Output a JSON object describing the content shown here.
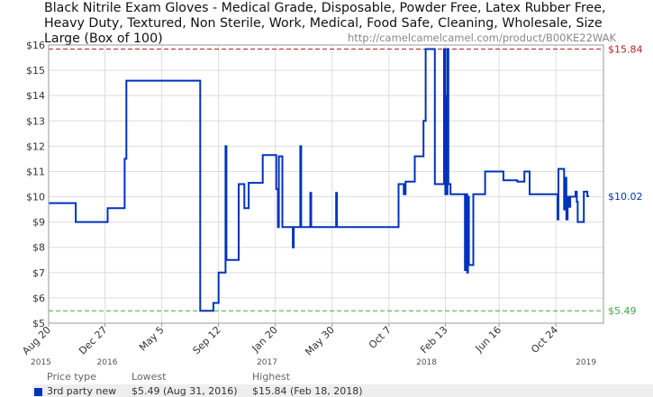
{
  "title": "Black Nitrile Exam Gloves - Medical Grade, Disposable, Powder Free, Latex Rubber Free, Heavy Duty, Textured, Non Sterile, Work, Medical, Food Safe, Cleaning, Wholesale, Size Large (Box of 100)",
  "source_url": "http://camelcamelcamel.com/product/B00KE22WAK",
  "colors": {
    "series": "#0033bb",
    "highest": "#b22222",
    "lowest": "#44aa44",
    "grid": "#dddddd",
    "axis_text": "#333333"
  },
  "chart_data": {
    "type": "line",
    "title": "Black Nitrile Exam Gloves - Medical Grade, Disposable, Powder Free, Latex Rubber Free, Heavy Duty, Textured, Non Sterile, Work, Medical, Food Safe, Cleaning, Wholesale, Size Large (Box of 100)",
    "xlabel": "",
    "ylabel": "",
    "ylim": [
      5,
      16
    ],
    "y_ticks": [
      5,
      6,
      7,
      8,
      9,
      10,
      11,
      12,
      13,
      14,
      15,
      16
    ],
    "y_tick_labels": [
      "$5",
      "$6",
      "$7",
      "$8",
      "$9",
      "$10",
      "$11",
      "$12",
      "$13",
      "$14",
      "$15",
      "$16"
    ],
    "xlim": [
      "2015-08-20",
      "2019-02-10"
    ],
    "x_ticks": [
      {
        "date": "2015-08-20",
        "label": "Aug 20"
      },
      {
        "date": "2015-12-27",
        "label": "Dec 27"
      },
      {
        "date": "2016-05-05",
        "label": "May 5"
      },
      {
        "date": "2016-09-12",
        "label": "Sep 12"
      },
      {
        "date": "2017-01-20",
        "label": "Jan 20"
      },
      {
        "date": "2017-05-30",
        "label": "May 30"
      },
      {
        "date": "2017-10-07",
        "label": "Oct 7"
      },
      {
        "date": "2018-02-13",
        "label": "Feb 13"
      },
      {
        "date": "2018-06-16",
        "label": "Jun 16"
      },
      {
        "date": "2018-10-24",
        "label": "Oct 24"
      }
    ],
    "year_labels": [
      {
        "date": "2015-08-20",
        "label": "2015"
      },
      {
        "date": "2016-01-01",
        "label": "2016"
      },
      {
        "date": "2017-01-01",
        "label": "2017"
      },
      {
        "date": "2018-01-01",
        "label": "2018"
      },
      {
        "date": "2019-01-01",
        "label": "2019"
      }
    ],
    "grid": true,
    "reference_lines": [
      {
        "value": 15.84,
        "label": "$15.84",
        "style": "dashed",
        "color": "#b22222"
      },
      {
        "value": 5.49,
        "label": "$5.49",
        "style": "dashed",
        "color": "#44aa44"
      }
    ],
    "current_label": {
      "value": 10.02,
      "label": "$10.02"
    },
    "series": [
      {
        "name": "3rd party new",
        "step": true,
        "points": [
          [
            "2015-08-20",
            9.75
          ],
          [
            "2015-10-21",
            9.75
          ],
          [
            "2015-10-21",
            9.0
          ],
          [
            "2016-01-02",
            9.0
          ],
          [
            "2016-01-02",
            9.55
          ],
          [
            "2016-02-10",
            9.55
          ],
          [
            "2016-02-10",
            11.5
          ],
          [
            "2016-02-14",
            11.5
          ],
          [
            "2016-02-14",
            14.59
          ],
          [
            "2016-05-30",
            14.59
          ],
          [
            "2016-05-30",
            14.59
          ],
          [
            "2016-08-01",
            14.59
          ],
          [
            "2016-08-01",
            5.49
          ],
          [
            "2016-08-31",
            5.49
          ],
          [
            "2016-08-31",
            5.8
          ],
          [
            "2016-09-12",
            5.8
          ],
          [
            "2016-09-12",
            7.0
          ],
          [
            "2016-09-28",
            7.0
          ],
          [
            "2016-09-28",
            12.0
          ],
          [
            "2016-09-30",
            12.0
          ],
          [
            "2016-09-30",
            7.5
          ],
          [
            "2016-10-28",
            7.5
          ],
          [
            "2016-10-28",
            10.5
          ],
          [
            "2016-11-10",
            10.5
          ],
          [
            "2016-11-10",
            9.55
          ],
          [
            "2016-11-20",
            9.55
          ],
          [
            "2016-11-20",
            10.55
          ],
          [
            "2016-12-22",
            10.55
          ],
          [
            "2016-12-22",
            11.65
          ],
          [
            "2017-01-22",
            11.65
          ],
          [
            "2017-01-22",
            10.3
          ],
          [
            "2017-01-26",
            10.3
          ],
          [
            "2017-01-26",
            8.8
          ],
          [
            "2017-01-28",
            8.8
          ],
          [
            "2017-01-28",
            11.6
          ],
          [
            "2017-02-05",
            11.6
          ],
          [
            "2017-02-05",
            8.8
          ],
          [
            "2017-03-01",
            8.8
          ],
          [
            "2017-03-01",
            8.0
          ],
          [
            "2017-03-03",
            8.0
          ],
          [
            "2017-03-03",
            8.8
          ],
          [
            "2017-03-18",
            8.8
          ],
          [
            "2017-03-18",
            12.0
          ],
          [
            "2017-03-20",
            12.0
          ],
          [
            "2017-03-20",
            8.8
          ],
          [
            "2017-04-10",
            8.8
          ],
          [
            "2017-04-10",
            10.15
          ],
          [
            "2017-04-12",
            10.15
          ],
          [
            "2017-04-12",
            8.8
          ],
          [
            "2017-06-08",
            8.8
          ],
          [
            "2017-06-08",
            10.15
          ],
          [
            "2017-06-10",
            10.15
          ],
          [
            "2017-06-10",
            8.8
          ],
          [
            "2017-10-29",
            8.8
          ],
          [
            "2017-10-29",
            10.5
          ],
          [
            "2017-11-10",
            10.5
          ],
          [
            "2017-11-10",
            10.1
          ],
          [
            "2017-11-14",
            10.1
          ],
          [
            "2017-11-14",
            10.6
          ],
          [
            "2017-12-05",
            10.6
          ],
          [
            "2017-12-05",
            11.6
          ],
          [
            "2017-12-25",
            11.6
          ],
          [
            "2017-12-25",
            13.0
          ],
          [
            "2017-12-30",
            13.0
          ],
          [
            "2017-12-30",
            15.84
          ],
          [
            "2018-01-20",
            15.84
          ],
          [
            "2018-01-20",
            10.5
          ],
          [
            "2018-02-10",
            10.5
          ],
          [
            "2018-02-10",
            15.84
          ],
          [
            "2018-02-13",
            15.84
          ],
          [
            "2018-02-13",
            10.1
          ],
          [
            "2018-02-15",
            10.1
          ],
          [
            "2018-02-15",
            14.0
          ],
          [
            "2018-02-17",
            14.0
          ],
          [
            "2018-02-17",
            10.1
          ],
          [
            "2018-02-18",
            10.1
          ],
          [
            "2018-02-18",
            15.84
          ],
          [
            "2018-02-20",
            15.84
          ],
          [
            "2018-02-20",
            10.5
          ],
          [
            "2018-02-25",
            10.5
          ],
          [
            "2018-02-25",
            10.1
          ],
          [
            "2018-03-30",
            10.1
          ],
          [
            "2018-03-30",
            7.1
          ],
          [
            "2018-04-02",
            7.1
          ],
          [
            "2018-04-02",
            10.1
          ],
          [
            "2018-04-04",
            10.1
          ],
          [
            "2018-04-04",
            7.0
          ],
          [
            "2018-04-06",
            7.0
          ],
          [
            "2018-04-06",
            10.0
          ],
          [
            "2018-04-08",
            10.0
          ],
          [
            "2018-04-08",
            7.3
          ],
          [
            "2018-04-18",
            7.3
          ],
          [
            "2018-04-18",
            10.1
          ],
          [
            "2018-05-15",
            10.1
          ],
          [
            "2018-05-15",
            11.0
          ],
          [
            "2018-06-26",
            11.0
          ],
          [
            "2018-06-26",
            10.65
          ],
          [
            "2018-07-28",
            10.65
          ],
          [
            "2018-07-28",
            10.6
          ],
          [
            "2018-08-13",
            10.6
          ],
          [
            "2018-08-13",
            11.0
          ],
          [
            "2018-08-25",
            11.0
          ],
          [
            "2018-08-25",
            10.1
          ],
          [
            "2018-10-28",
            10.1
          ],
          [
            "2018-10-28",
            9.1
          ],
          [
            "2018-10-30",
            9.1
          ],
          [
            "2018-10-30",
            11.1
          ],
          [
            "2018-11-12",
            11.1
          ],
          [
            "2018-11-12",
            9.5
          ],
          [
            "2018-11-14",
            9.5
          ],
          [
            "2018-11-14",
            10.75
          ],
          [
            "2018-11-17",
            10.75
          ],
          [
            "2018-11-17",
            9.1
          ],
          [
            "2018-11-20",
            9.1
          ],
          [
            "2018-11-20",
            10.0
          ],
          [
            "2018-11-24",
            10.0
          ],
          [
            "2018-11-24",
            9.6
          ],
          [
            "2018-11-26",
            9.6
          ],
          [
            "2018-11-26",
            10.0
          ],
          [
            "2018-12-08",
            10.0
          ],
          [
            "2018-12-08",
            10.2
          ],
          [
            "2018-12-11",
            10.2
          ],
          [
            "2018-12-11",
            9.8
          ],
          [
            "2018-12-13",
            9.8
          ],
          [
            "2018-12-13",
            9.0
          ],
          [
            "2018-12-27",
            9.0
          ],
          [
            "2018-12-27",
            10.2
          ],
          [
            "2019-01-04",
            10.2
          ],
          [
            "2019-01-04",
            10.02
          ],
          [
            "2019-01-08",
            10.02
          ]
        ]
      }
    ]
  },
  "legend": {
    "headers": {
      "type": "Price type",
      "lowest": "Lowest",
      "highest": "Highest"
    },
    "rows": [
      {
        "type": "3rd party new",
        "lowest": "$5.49 (Aug 31, 2016)",
        "highest": "$15.84 (Feb 18, 2018)"
      }
    ]
  }
}
